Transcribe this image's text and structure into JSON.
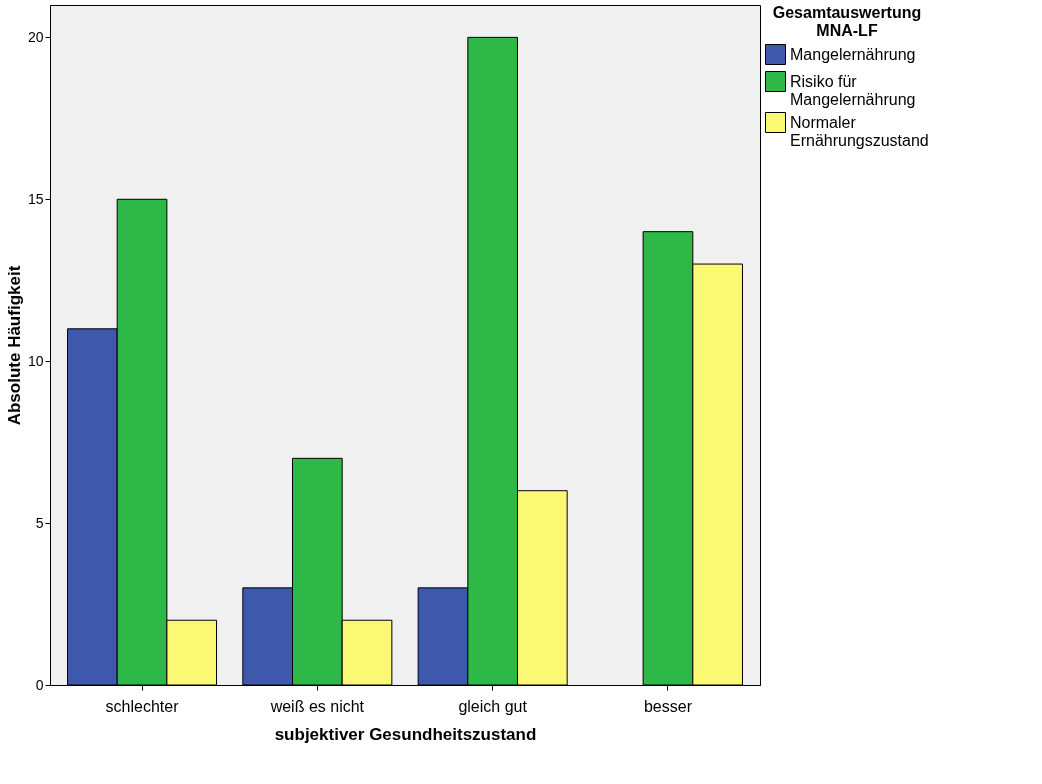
{
  "chart_data": {
    "type": "bar",
    "xlabel": "subjektiver Gesundheitszustand",
    "ylabel": "Absolute Häufigkeit",
    "legend_title": "Gesamtauswertung\nMNA-LF",
    "categories": [
      "schlechter",
      "weiß es nicht",
      "gleich gut",
      "besser"
    ],
    "series": [
      {
        "name": "Mangelernährung",
        "color": "#3e58ac",
        "values": [
          11,
          3,
          3,
          null
        ]
      },
      {
        "name": "Risiko für\nMangelernährung",
        "color": "#2eb848",
        "values": [
          15,
          7,
          20,
          14
        ]
      },
      {
        "name": "Normaler\nErnährungszustand",
        "color": "#fbf873",
        "values": [
          2,
          2,
          6,
          13
        ]
      }
    ],
    "ylim": [
      0,
      21
    ],
    "yticks": [
      0,
      5,
      10,
      15,
      20
    ],
    "grid": false,
    "legend": "top right"
  }
}
